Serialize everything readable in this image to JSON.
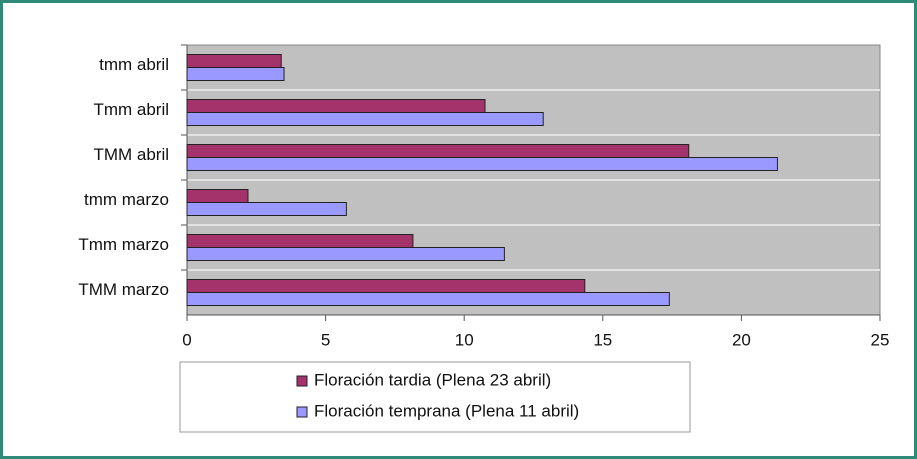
{
  "chart_data": {
    "type": "hbar",
    "categories": [
      "tmm abril",
      "Tmm abril",
      "TMM abril",
      "tmm marzo",
      "Tmm marzo",
      "TMM marzo"
    ],
    "series": [
      {
        "name": "Floración tardia (Plena 23 abril)",
        "color": "#a3336a",
        "values": [
          3.4,
          10.75,
          18.1,
          2.2,
          8.15,
          14.35
        ]
      },
      {
        "name": "Floración temprana (Plena 11 abril)",
        "color": "#9999ff",
        "values": [
          3.5,
          12.85,
          21.3,
          5.75,
          11.45,
          17.4
        ]
      }
    ],
    "xlim": [
      0,
      25
    ],
    "xticks": [
      0,
      5,
      10,
      15,
      20,
      25
    ]
  }
}
